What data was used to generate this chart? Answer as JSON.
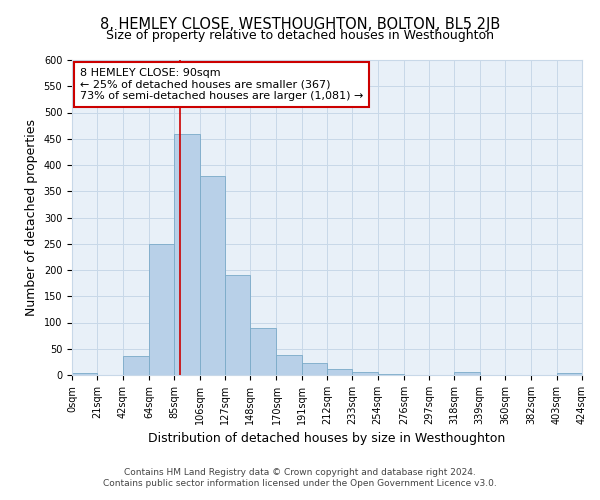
{
  "title": "8, HEMLEY CLOSE, WESTHOUGHTON, BOLTON, BL5 2JB",
  "subtitle": "Size of property relative to detached houses in Westhoughton",
  "xlabel": "Distribution of detached houses by size in Westhoughton",
  "ylabel": "Number of detached properties",
  "footer_line1": "Contains HM Land Registry data © Crown copyright and database right 2024.",
  "footer_line2": "Contains public sector information licensed under the Open Government Licence v3.0.",
  "annotation_line1": "8 HEMLEY CLOSE: 90sqm",
  "annotation_line2": "← 25% of detached houses are smaller (367)",
  "annotation_line3": "73% of semi-detached houses are larger (1,081) →",
  "bin_edges": [
    0,
    21,
    42,
    64,
    85,
    106,
    127,
    148,
    170,
    191,
    212,
    233,
    254,
    276,
    297,
    318,
    339,
    360,
    382,
    403,
    424
  ],
  "bin_heights": [
    4,
    0,
    37,
    250,
    460,
    380,
    190,
    90,
    38,
    22,
    11,
    5,
    1,
    0,
    0,
    5,
    0,
    0,
    0,
    3
  ],
  "bar_color": "#b8d0e8",
  "bar_edge_color": "#7aaac8",
  "vline_x": 90,
  "vline_color": "#cc0000",
  "annotation_box_color": "#cc0000",
  "ylim": [
    0,
    600
  ],
  "yticks": [
    0,
    50,
    100,
    150,
    200,
    250,
    300,
    350,
    400,
    450,
    500,
    550,
    600
  ],
  "tick_labels": [
    "0sqm",
    "21sqm",
    "42sqm",
    "64sqm",
    "85sqm",
    "106sqm",
    "127sqm",
    "148sqm",
    "170sqm",
    "191sqm",
    "212sqm",
    "233sqm",
    "254sqm",
    "276sqm",
    "297sqm",
    "318sqm",
    "339sqm",
    "360sqm",
    "382sqm",
    "403sqm",
    "424sqm"
  ],
  "grid_color": "#c8d8e8",
  "background_color": "#e8f0f8",
  "title_fontsize": 10.5,
  "subtitle_fontsize": 9,
  "axis_label_fontsize": 9,
  "tick_fontsize": 7,
  "annotation_fontsize": 8,
  "footer_fontsize": 6.5
}
